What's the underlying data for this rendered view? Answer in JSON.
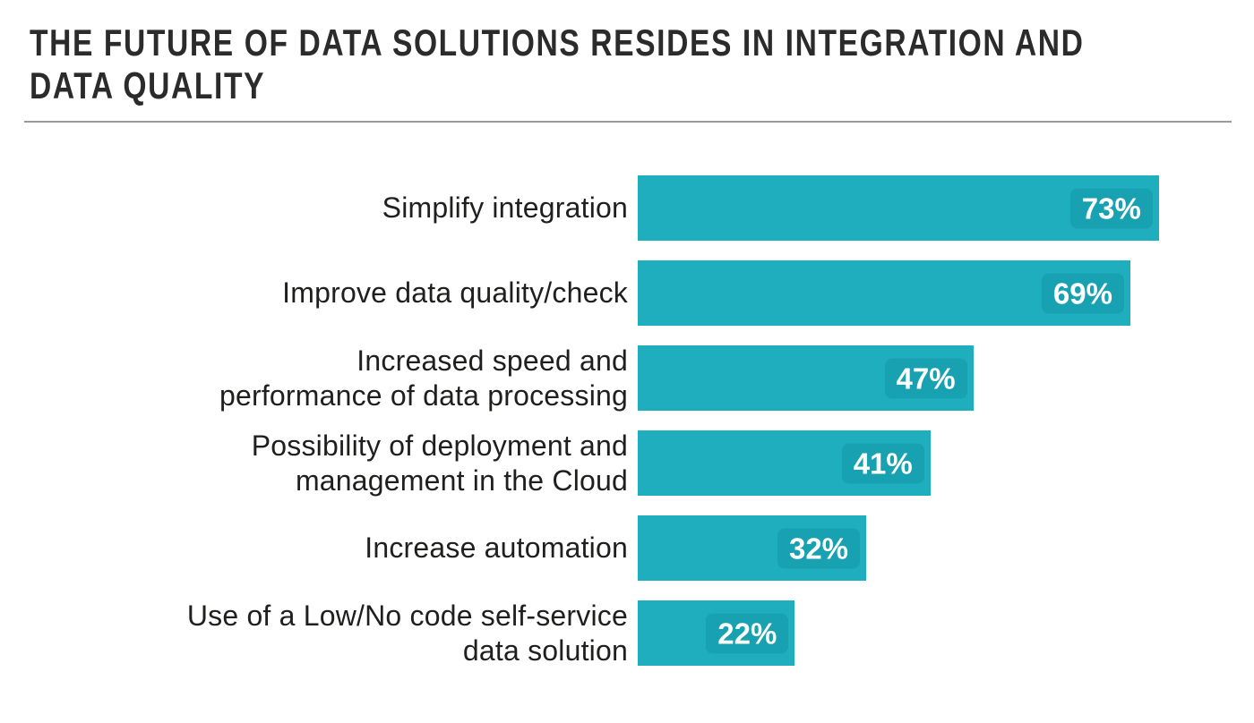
{
  "header": {
    "title": "THE FUTURE OF DATA SOLUTIONS RESIDES IN INTEGRATION AND DATA QUALITY",
    "title_lines": [
      "THE FUTURE OF DATA SOLUTIONS RESIDES IN INTEGRATION AND",
      "DATA QUALITY"
    ]
  },
  "chart_data": {
    "type": "bar",
    "orientation": "horizontal",
    "title": "THE FUTURE OF DATA SOLUTIONS RESIDES IN INTEGRATION AND DATA QUALITY",
    "categories": [
      "Simplify integration",
      "Improve data quality/check",
      "Increased speed and performance of data processing",
      "Possibility of deployment and management in the Cloud",
      "Increase automation",
      "Use of a Low/No code self-service data solution"
    ],
    "values": [
      73,
      69,
      47,
      41,
      32,
      22
    ],
    "value_suffix": "%",
    "label_lines": [
      [
        "Simplify integration"
      ],
      [
        "Improve data quality/check"
      ],
      [
        "Increased speed and",
        "performance of data processing"
      ],
      [
        "Possibility of deployment and",
        "management in the Cloud"
      ],
      [
        "Increase automation"
      ],
      [
        "Use of a Low/No code self-service",
        "data solution"
      ]
    ],
    "xlim": [
      0,
      100
    ],
    "grid": false,
    "legend": false,
    "value_labels": "inside-end",
    "colors": {
      "bar": "#1FAEBD",
      "value_badge": "#17A1B1",
      "label_text": "#1F1F1E",
      "value_text": "#FFFFFF",
      "title_text": "#2B2B2B",
      "divider": "#9B9B9B"
    }
  }
}
